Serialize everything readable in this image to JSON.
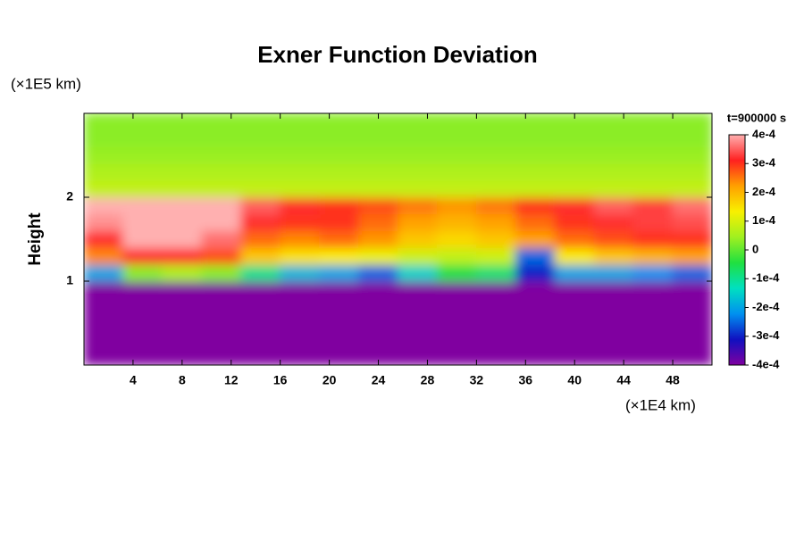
{
  "chart_data": {
    "type": "heatmap",
    "title": "Exner Function Deviation",
    "y_unit_label": "(×1E5 km)",
    "ylabel": "Height",
    "x_unit_label": "(×1E4 km)",
    "time_label": "t=900000 s",
    "xlim": [
      0,
      51.2
    ],
    "ylim": [
      0,
      3
    ],
    "xticks": [
      4,
      8,
      12,
      16,
      20,
      24,
      28,
      32,
      36,
      40,
      44,
      48
    ],
    "yticks": [
      1,
      2
    ],
    "zlim": [
      -0.0004,
      0.0004
    ],
    "zticks": [
      {
        "value": 0.0004,
        "label": "4e-4"
      },
      {
        "value": 0.0003,
        "label": "3e-4"
      },
      {
        "value": 0.0002,
        "label": "2e-4"
      },
      {
        "value": 0.0001,
        "label": "1e-4"
      },
      0,
      {
        "value": -0.0001,
        "label": "-1e-4"
      },
      {
        "value": -0.0002,
        "label": "-2e-4"
      },
      {
        "value": -0.0003,
        "label": "-3e-4"
      },
      {
        "value": -0.0004,
        "label": "-4e-4"
      }
    ],
    "colorscale": [
      "#8000a0",
      "#1010c0",
      "#0090f0",
      "#00e0c0",
      "#20e040",
      "#a0f020",
      "#f8f000",
      "#ffa000",
      "#ff2020",
      "#ffb0b0"
    ],
    "x": [
      1.6,
      4.8,
      8,
      11.2,
      14.4,
      17.6,
      20.8,
      24,
      27.2,
      30.4,
      33.6,
      36.8,
      40,
      43.2,
      46.4,
      49.6
    ],
    "y": [
      0.1,
      0.3,
      0.5,
      0.7,
      0.9,
      1.1,
      1.3,
      1.5,
      1.7,
      1.9,
      2.1,
      2.3,
      2.5,
      2.7,
      2.9
    ],
    "z": [
      [
        -0.0004,
        -0.0004,
        -0.0004,
        -0.0004,
        -0.0004,
        -0.0004,
        -0.0004,
        -0.0004,
        -0.0004,
        -0.0004,
        -0.0004,
        -0.0004,
        -0.0004,
        -0.0004,
        -0.0004,
        -0.0004
      ],
      [
        -0.0004,
        -0.0004,
        -0.0004,
        -0.0004,
        -0.0004,
        -0.0004,
        -0.0004,
        -0.0004,
        -0.0004,
        -0.0004,
        -0.0004,
        -0.0004,
        -0.0004,
        -0.0004,
        -0.0004,
        -0.0004
      ],
      [
        -0.0004,
        -0.0004,
        -0.0004,
        -0.0004,
        -0.0004,
        -0.0004,
        -0.0004,
        -0.0004,
        -0.0004,
        -0.0004,
        -0.0004,
        -0.0004,
        -0.0004,
        -0.0004,
        -0.0004,
        -0.0004
      ],
      [
        -0.0004,
        -0.0004,
        -0.0004,
        -0.0004,
        -0.0004,
        -0.0004,
        -0.0004,
        -0.0004,
        -0.0004,
        -0.0004,
        -0.0004,
        -0.0004,
        -0.0004,
        -0.0004,
        -0.0004,
        -0.0004
      ],
      [
        -0.0004,
        -0.0004,
        -0.0004,
        -0.0004,
        -0.0004,
        -0.0004,
        -0.0004,
        -0.0004,
        -0.0004,
        -0.0004,
        -0.0004,
        -0.0004,
        -0.0004,
        -0.0004,
        -0.0004,
        -0.0004
      ],
      [
        -0.0002,
        3e-05,
        6e-05,
        3e-05,
        -0.0001,
        -0.00018,
        -0.0002,
        -0.00025,
        -0.00015,
        -5e-05,
        -8e-05,
        -0.0003,
        -0.0002,
        -0.0002,
        -0.00022,
        -0.00025
      ],
      [
        0.00024,
        0.00032,
        0.00032,
        0.00028,
        0.00018,
        0.00015,
        0.00014,
        0.00012,
        9e-05,
        8e-05,
        9e-05,
        -0.00025,
        0.00014,
        0.00018,
        0.0002,
        0.00022
      ],
      [
        0.00032,
        0.0004,
        0.0004,
        0.00036,
        0.00026,
        0.00024,
        0.00026,
        0.00023,
        0.00018,
        0.00016,
        0.00018,
        0.00022,
        0.00026,
        0.00028,
        0.0003,
        0.0003
      ],
      [
        0.00038,
        0.0004,
        0.0004,
        0.0004,
        0.00032,
        0.0003,
        0.0003,
        0.00026,
        0.00022,
        0.0002,
        0.00022,
        0.00026,
        0.0003,
        0.00032,
        0.00033,
        0.00034
      ],
      [
        0.0004,
        0.0004,
        0.0004,
        0.0004,
        0.00035,
        0.00032,
        0.0003,
        0.00028,
        0.00025,
        0.00023,
        0.00025,
        0.0003,
        0.00032,
        0.00035,
        0.00033,
        0.00036
      ],
      [
        8e-05,
        8e-05,
        8e-05,
        8e-05,
        8e-05,
        8e-05,
        8e-05,
        8e-05,
        8e-05,
        8e-05,
        8e-05,
        8e-05,
        8e-05,
        8e-05,
        8e-05,
        8e-05
      ],
      [
        6e-05,
        6e-05,
        6e-05,
        6e-05,
        6e-05,
        6e-05,
        6e-05,
        6e-05,
        6e-05,
        6e-05,
        6e-05,
        6e-05,
        6e-05,
        6e-05,
        6e-05,
        6e-05
      ],
      [
        4e-05,
        4e-05,
        4e-05,
        4e-05,
        4e-05,
        4e-05,
        4e-05,
        4e-05,
        4e-05,
        4e-05,
        4e-05,
        4e-05,
        4e-05,
        4e-05,
        4e-05,
        4e-05
      ],
      [
        3e-05,
        3e-05,
        3e-05,
        3e-05,
        3e-05,
        3e-05,
        3e-05,
        3e-05,
        3e-05,
        3e-05,
        3e-05,
        3e-05,
        3e-05,
        3e-05,
        3e-05,
        3e-05
      ],
      [
        3e-05,
        3e-05,
        3e-05,
        3e-05,
        3e-05,
        3e-05,
        3e-05,
        3e-05,
        3e-05,
        3e-05,
        3e-05,
        3e-05,
        3e-05,
        3e-05,
        3e-05,
        3e-05
      ]
    ]
  }
}
